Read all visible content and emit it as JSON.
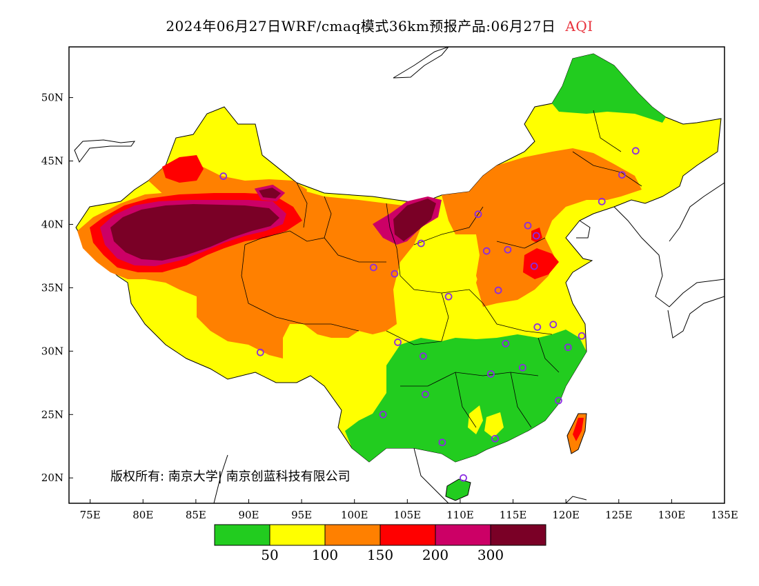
{
  "title": {
    "main": "2024年06月27日WRF/cmaq模式36km预报产品:06月27日",
    "variable": "AQI"
  },
  "map": {
    "x_ticks": [
      "75E",
      "80E",
      "85E",
      "90E",
      "95E",
      "100E",
      "105E",
      "110E",
      "115E",
      "120E",
      "125E",
      "130E",
      "135E"
    ],
    "y_ticks": [
      "50N",
      "45N",
      "40N",
      "35N",
      "30N",
      "25N",
      "20N"
    ],
    "copyright": "版权所有: 南京大学| 南京创蓝科技有限公司",
    "lon_range": [
      73,
      135
    ],
    "lat_range": [
      18,
      54
    ]
  },
  "legend": {
    "colors": [
      "#22cc1f",
      "#ffff00",
      "#ff8000",
      "#ff0000",
      "#cc0066",
      "#7a0026"
    ],
    "labels": [
      "50",
      "100",
      "150",
      "200",
      "300"
    ]
  },
  "colors": {
    "good": "#22cc1f",
    "moderate": "#ffff00",
    "sensitive": "#ff8000",
    "unhealthy": "#ff0000",
    "very_unhealthy": "#cc0066",
    "hazardous": "#7a0026",
    "station_marker": "#8a2be2"
  },
  "stations": [
    {
      "lon": 87.6,
      "lat": 43.8
    },
    {
      "lon": 101.8,
      "lat": 36.6
    },
    {
      "lon": 103.8,
      "lat": 36.1
    },
    {
      "lon": 106.3,
      "lat": 38.5
    },
    {
      "lon": 111.7,
      "lat": 40.8
    },
    {
      "lon": 116.4,
      "lat": 39.9
    },
    {
      "lon": 117.2,
      "lat": 39.1
    },
    {
      "lon": 114.5,
      "lat": 38.0
    },
    {
      "lon": 112.5,
      "lat": 37.9
    },
    {
      "lon": 117.0,
      "lat": 36.7
    },
    {
      "lon": 113.6,
      "lat": 34.8
    },
    {
      "lon": 108.9,
      "lat": 34.3
    },
    {
      "lon": 123.4,
      "lat": 41.8
    },
    {
      "lon": 125.3,
      "lat": 43.9
    },
    {
      "lon": 126.6,
      "lat": 45.8
    },
    {
      "lon": 91.1,
      "lat": 29.9
    },
    {
      "lon": 104.1,
      "lat": 30.7
    },
    {
      "lon": 106.5,
      "lat": 29.6
    },
    {
      "lon": 106.7,
      "lat": 26.6
    },
    {
      "lon": 102.7,
      "lat": 25.0
    },
    {
      "lon": 108.3,
      "lat": 22.8
    },
    {
      "lon": 113.3,
      "lat": 23.1
    },
    {
      "lon": 110.3,
      "lat": 20.0
    },
    {
      "lon": 112.9,
      "lat": 28.2
    },
    {
      "lon": 114.3,
      "lat": 30.6
    },
    {
      "lon": 115.9,
      "lat": 28.7
    },
    {
      "lon": 117.3,
      "lat": 31.9
    },
    {
      "lon": 118.8,
      "lat": 32.1
    },
    {
      "lon": 120.2,
      "lat": 30.3
    },
    {
      "lon": 121.5,
      "lat": 31.2
    },
    {
      "lon": 119.3,
      "lat": 26.1
    }
  ]
}
